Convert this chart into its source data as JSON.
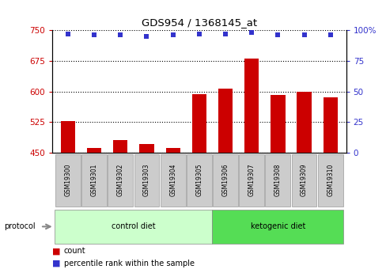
{
  "title": "GDS954 / 1368145_at",
  "samples": [
    "GSM19300",
    "GSM19301",
    "GSM19302",
    "GSM19303",
    "GSM19304",
    "GSM19305",
    "GSM19306",
    "GSM19307",
    "GSM19308",
    "GSM19309",
    "GSM19310"
  ],
  "counts": [
    527,
    462,
    482,
    472,
    462,
    593,
    607,
    681,
    591,
    600,
    585
  ],
  "percentile_ranks": [
    97,
    96,
    96,
    95,
    96,
    97,
    97,
    98,
    96,
    96,
    96
  ],
  "ylim_left": [
    450,
    750
  ],
  "ylim_right": [
    0,
    100
  ],
  "yticks_left": [
    450,
    525,
    600,
    675,
    750
  ],
  "yticks_right": [
    0,
    25,
    50,
    75,
    100
  ],
  "bar_color": "#cc0000",
  "dot_color": "#3333cc",
  "control_diet_indices": [
    0,
    1,
    2,
    3,
    4,
    5
  ],
  "ketogenic_diet_indices": [
    6,
    7,
    8,
    9,
    10
  ],
  "control_label": "control diet",
  "ketogenic_label": "ketogenic diet",
  "protocol_label": "protocol",
  "legend_count": "count",
  "legend_percentile": "percentile rank within the sample",
  "control_bg": "#ccffcc",
  "ketogenic_bg": "#55dd55",
  "sample_bg": "#cccccc",
  "left_axis_color": "#cc0000",
  "right_axis_color": "#3333cc",
  "title_color": "#333333"
}
